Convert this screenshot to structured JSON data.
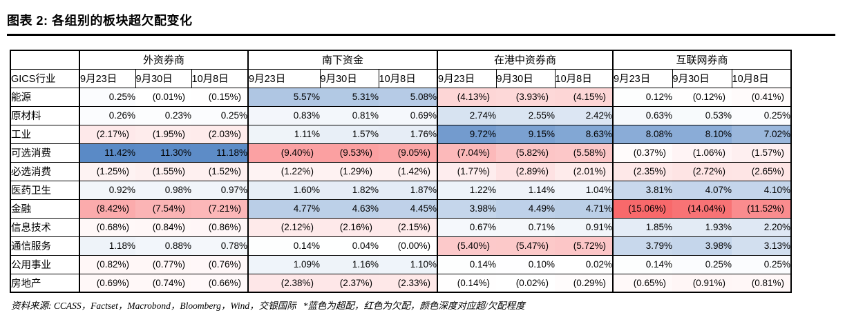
{
  "chart_data": {
    "type": "heatmap-table",
    "title": "图表 2: 各组别的板块超欠配变化",
    "corner_label": "GICS行业",
    "column_groups": [
      "外资券商",
      "南下资金",
      "在港中资券商",
      "互联网券商"
    ],
    "date_columns": [
      "9月23日",
      "9月30日",
      "10月8日"
    ],
    "rows": [
      {
        "industry": "能源",
        "cells": [
          "0.25%",
          "(0.01%)",
          "(0.15%)",
          "5.57%",
          "5.31%",
          "5.08%",
          "(4.13%)",
          "(3.93%)",
          "(4.15%)",
          "0.12%",
          "(0.12%)",
          "(0.41%)"
        ]
      },
      {
        "industry": "原材料",
        "cells": [
          "0.26%",
          "0.23%",
          "0.25%",
          "0.83%",
          "0.81%",
          "0.69%",
          "2.74%",
          "2.55%",
          "2.42%",
          "0.63%",
          "0.53%",
          "0.25%"
        ]
      },
      {
        "industry": "工业",
        "cells": [
          "(2.17%)",
          "(1.95%)",
          "(2.03%)",
          "1.11%",
          "1.57%",
          "1.76%",
          "9.72%",
          "9.15%",
          "8.63%",
          "8.08%",
          "8.10%",
          "7.02%"
        ]
      },
      {
        "industry": "可选消费",
        "cells": [
          "11.42%",
          "11.30%",
          "11.18%",
          "(9.40%)",
          "(9.53%)",
          "(9.05%)",
          "(7.04%)",
          "(5.82%)",
          "(5.58%)",
          "(0.37%)",
          "(1.06%)",
          "(1.57%)"
        ]
      },
      {
        "industry": "必选消费",
        "cells": [
          "(1.25%)",
          "(1.55%)",
          "(1.52%)",
          "(1.22%)",
          "(1.29%)",
          "(1.42%)",
          "(1.77%)",
          "(2.89%)",
          "(2.01%)",
          "(2.35%)",
          "(2.72%)",
          "(2.65%)"
        ]
      },
      {
        "industry": "医药卫生",
        "cells": [
          "0.92%",
          "0.98%",
          "0.97%",
          "1.60%",
          "1.82%",
          "1.87%",
          "1.22%",
          "1.14%",
          "1.04%",
          "3.81%",
          "4.07%",
          "4.10%"
        ]
      },
      {
        "industry": "金融",
        "cells": [
          "(8.42%)",
          "(7.54%)",
          "(7.21%)",
          "4.77%",
          "4.63%",
          "4.45%",
          "3.98%",
          "4.49%",
          "4.71%",
          "(15.06%)",
          "(14.04%)",
          "(11.52%)"
        ]
      },
      {
        "industry": "信息技术",
        "cells": [
          "(0.68%)",
          "(0.84%)",
          "(0.86%)",
          "(2.12%)",
          "(2.16%)",
          "(2.15%)",
          "0.67%",
          "0.71%",
          "0.91%",
          "1.85%",
          "1.93%",
          "2.20%"
        ]
      },
      {
        "industry": "通信服务",
        "cells": [
          "1.18%",
          "0.88%",
          "0.78%",
          "0.14%",
          "0.04%",
          "(0.00%)",
          "(5.40%)",
          "(5.47%)",
          "(5.72%)",
          "3.79%",
          "3.98%",
          "3.13%"
        ]
      },
      {
        "industry": "公用事业",
        "cells": [
          "(0.82%)",
          "(0.77%)",
          "(0.76%)",
          "1.09%",
          "1.16%",
          "1.10%",
          "0.14%",
          "0.10%",
          "0.02%",
          "0.14%",
          "0.25%",
          "0.25%"
        ]
      },
      {
        "industry": "房地产",
        "cells": [
          "(0.69%)",
          "(0.74%)",
          "(0.66%)",
          "(2.38%)",
          "(2.37%)",
          "(2.33%)",
          "(0.14%)",
          "(0.02%)",
          "(0.29%)",
          "(0.65%)",
          "(0.91%)",
          "(0.81%)"
        ]
      }
    ],
    "colorscale": {
      "positive_full": "#5A8AC6",
      "negative_full": "#F8696B",
      "positive_max": 11.42,
      "negative_max": 15.06
    }
  },
  "footnote": {
    "source": "资料来源: CCASS，Factset，Macrobond，Bloomberg，Wind，交银国际",
    "legend": "*蓝色为超配，红色为欠配，颜色深度对应超/欠配程度"
  }
}
